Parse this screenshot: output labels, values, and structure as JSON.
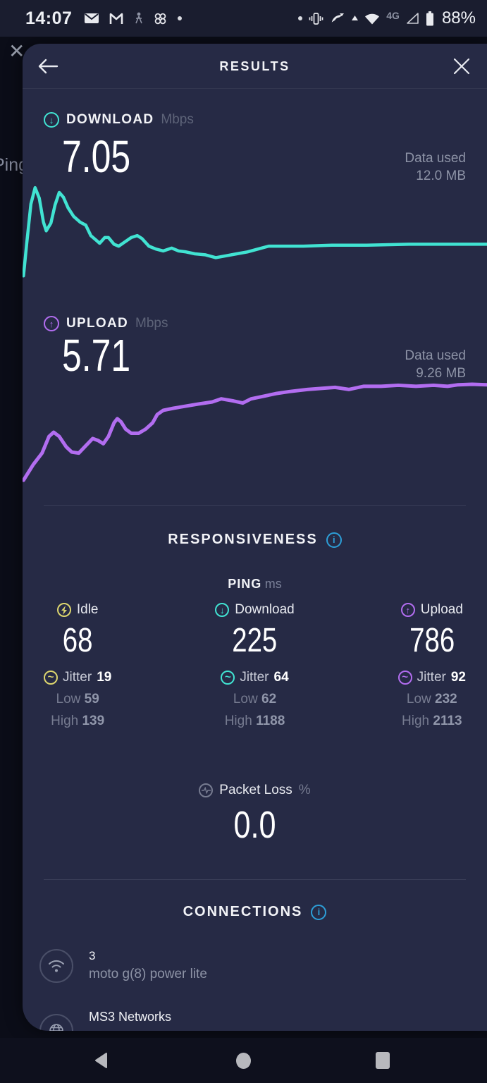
{
  "status_bar": {
    "time": "14:07",
    "network_badge": "4G",
    "battery_percent": "88%",
    "icons_left": [
      "mail-icon",
      "gmail-icon",
      "person-icon",
      "photos-pinwheel-icon",
      "notification-dot"
    ],
    "icons_right": [
      "notification-dot",
      "vibrate-icon",
      "wifi-calling-icon",
      "wifi-icon",
      "cellular-signal-icon",
      "battery-icon"
    ]
  },
  "background_screen": {
    "partial_text": "Ping",
    "partial_close_glyph": "✕"
  },
  "header": {
    "title": "RESULTS",
    "back_glyph": "←",
    "close_glyph": "✕"
  },
  "download": {
    "label": "DOWNLOAD",
    "unit": "Mbps",
    "value": "7.05",
    "data_used_label": "Data used",
    "data_used_value": "12.0 MB",
    "accent_color": "#41e3d2"
  },
  "upload": {
    "label": "UPLOAD",
    "unit": "Mbps",
    "value": "5.71",
    "data_used_label": "Data used",
    "data_used_value": "9.26 MB",
    "accent_color": "#b26df0"
  },
  "responsiveness": {
    "title": "RESPONSIVENESS",
    "ping_label": "PING",
    "ping_unit": "ms",
    "columns": [
      {
        "name": "Idle",
        "value": "68",
        "jitter_label": "Jitter",
        "jitter_value": "19",
        "low_label": "Low",
        "low_value": "59",
        "high_label": "High",
        "high_value": "139",
        "color": "#ddd66e"
      },
      {
        "name": "Download",
        "value": "225",
        "jitter_label": "Jitter",
        "jitter_value": "64",
        "low_label": "Low",
        "low_value": "62",
        "high_label": "High",
        "high_value": "1188",
        "color": "#41e3d2"
      },
      {
        "name": "Upload",
        "value": "786",
        "jitter_label": "Jitter",
        "jitter_value": "92",
        "low_label": "Low",
        "low_value": "232",
        "high_label": "High",
        "high_value": "2113",
        "color": "#b26df0"
      }
    ],
    "packet_loss": {
      "label": "Packet Loss",
      "unit": "%",
      "value": "0.0"
    }
  },
  "connections": {
    "title": "CONNECTIONS",
    "items": [
      {
        "icon": "wifi-icon",
        "title": "3",
        "subtitle": "moto g(8) power lite"
      },
      {
        "icon": "globe-icon",
        "title": "MS3 Networks",
        "subtitle": ""
      }
    ]
  },
  "nav_bar": {
    "icons": [
      "back-triangle-icon",
      "home-circle-icon",
      "recents-square-icon"
    ]
  },
  "chart_data": [
    {
      "type": "line",
      "name": "download-speed-over-time",
      "title": "DOWNLOAD Mbps",
      "final_mbps": 7.05,
      "est_peak_mbps": 19.7,
      "color": "#41e3d2",
      "stroke_width": 4.5,
      "x_axis": "test progress (%)",
      "y_axis": "speed (Mbps, estimated)",
      "points_format": [
        "x_pct",
        "y_pct_from_top",
        "est_mbps"
      ],
      "points": [
        [
          0.2,
          98,
          0
        ],
        [
          0.9,
          64,
          7.3
        ],
        [
          1.8,
          23,
          16.0
        ],
        [
          2.7,
          6,
          19.7
        ],
        [
          3.6,
          17,
          17.3
        ],
        [
          4.5,
          42,
          12.0
        ],
        [
          5.1,
          51,
          10.0
        ],
        [
          6.1,
          43,
          11.8
        ],
        [
          7.0,
          24,
          15.8
        ],
        [
          7.9,
          11,
          18.6
        ],
        [
          8.8,
          16,
          17.5
        ],
        [
          9.8,
          27,
          15.2
        ],
        [
          11.0,
          36,
          13.2
        ],
        [
          12.4,
          42,
          12.0
        ],
        [
          13.6,
          45,
          11.3
        ],
        [
          14.7,
          56,
          9.0
        ],
        [
          15.9,
          61,
          7.9
        ],
        [
          16.6,
          64,
          7.3
        ],
        [
          17.7,
          58,
          8.5
        ],
        [
          18.5,
          58,
          8.5
        ],
        [
          19.7,
          65,
          7.1
        ],
        [
          20.7,
          67,
          6.6
        ],
        [
          21.9,
          63,
          7.5
        ],
        [
          23.4,
          58,
          8.5
        ],
        [
          24.7,
          56,
          9.0
        ],
        [
          25.7,
          59,
          8.3
        ],
        [
          27.2,
          67,
          6.6
        ],
        [
          28.7,
          70,
          6.0
        ],
        [
          30.3,
          72,
          5.6
        ],
        [
          32.1,
          69,
          6.2
        ],
        [
          33.6,
          72,
          5.6
        ],
        [
          35.2,
          73,
          5.3
        ],
        [
          37.1,
          75,
          4.9
        ],
        [
          39.3,
          76,
          4.7
        ],
        [
          41.6,
          79,
          4.1
        ],
        [
          43.9,
          77,
          4.5
        ],
        [
          46.1,
          75,
          4.9
        ],
        [
          48.4,
          73,
          5.3
        ],
        [
          50.7,
          70,
          6.0
        ],
        [
          53.0,
          67,
          6.6
        ],
        [
          56.0,
          67,
          6.6
        ],
        [
          60.5,
          67,
          6.6
        ],
        [
          66.6,
          66,
          6.8
        ],
        [
          74.1,
          66,
          6.8
        ],
        [
          83.2,
          65,
          7.1
        ],
        [
          92.3,
          65,
          7.1
        ],
        [
          100,
          65,
          7.1
        ]
      ]
    },
    {
      "type": "line",
      "name": "upload-speed-over-time",
      "title": "UPLOAD Mbps",
      "final_mbps": 5.71,
      "est_peak_mbps": 5.8,
      "color": "#b26df0",
      "stroke_width": 5,
      "x_axis": "test progress (%)",
      "y_axis": "speed (Mbps, estimated)",
      "points_format": [
        "x_pct",
        "y_pct_from_top",
        "est_mbps"
      ],
      "points": [
        [
          0.2,
          94,
          0.4
        ],
        [
          2.3,
          79,
          1.2
        ],
        [
          4.2,
          68,
          1.9
        ],
        [
          5.7,
          52,
          2.8
        ],
        [
          6.7,
          48,
          3.1
        ],
        [
          7.9,
          52,
          2.8
        ],
        [
          9.4,
          62,
          2.2
        ],
        [
          10.6,
          67,
          1.9
        ],
        [
          12.1,
          68,
          1.9
        ],
        [
          13.6,
          61,
          2.3
        ],
        [
          15.1,
          54,
          2.7
        ],
        [
          16.3,
          56,
          2.6
        ],
        [
          17.4,
          59,
          2.4
        ],
        [
          18.5,
          52,
          2.8
        ],
        [
          19.7,
          39,
          3.6
        ],
        [
          20.4,
          35,
          3.8
        ],
        [
          21.2,
          38,
          3.6
        ],
        [
          22.2,
          45,
          3.2
        ],
        [
          23.4,
          49,
          3.0
        ],
        [
          25.0,
          49,
          3.0
        ],
        [
          26.5,
          45,
          3.2
        ],
        [
          28.0,
          39,
          3.6
        ],
        [
          29.0,
          31,
          4.1
        ],
        [
          30.3,
          27,
          4.3
        ],
        [
          32.5,
          25,
          4.4
        ],
        [
          35.1,
          23,
          4.5
        ],
        [
          37.8,
          21,
          4.6
        ],
        [
          40.8,
          19,
          4.8
        ],
        [
          42.8,
          16,
          4.9
        ],
        [
          45.4,
          18,
          4.8
        ],
        [
          47.4,
          20,
          4.7
        ],
        [
          49.2,
          16,
          4.9
        ],
        [
          51.4,
          14,
          5.1
        ],
        [
          54.5,
          11,
          5.2
        ],
        [
          57.5,
          9,
          5.4
        ],
        [
          61.3,
          7,
          5.5
        ],
        [
          64.3,
          6,
          5.5
        ],
        [
          67.3,
          5,
          5.6
        ],
        [
          70.3,
          7,
          5.5
        ],
        [
          73.4,
          4,
          5.6
        ],
        [
          77.2,
          4,
          5.6
        ],
        [
          80.9,
          3,
          5.7
        ],
        [
          84.7,
          4,
          5.6
        ],
        [
          88.5,
          3,
          5.7
        ],
        [
          91.5,
          4,
          5.6
        ],
        [
          93.8,
          2.5,
          5.7
        ],
        [
          96.8,
          2,
          5.8
        ],
        [
          100,
          2.5,
          5.7
        ]
      ]
    }
  ]
}
